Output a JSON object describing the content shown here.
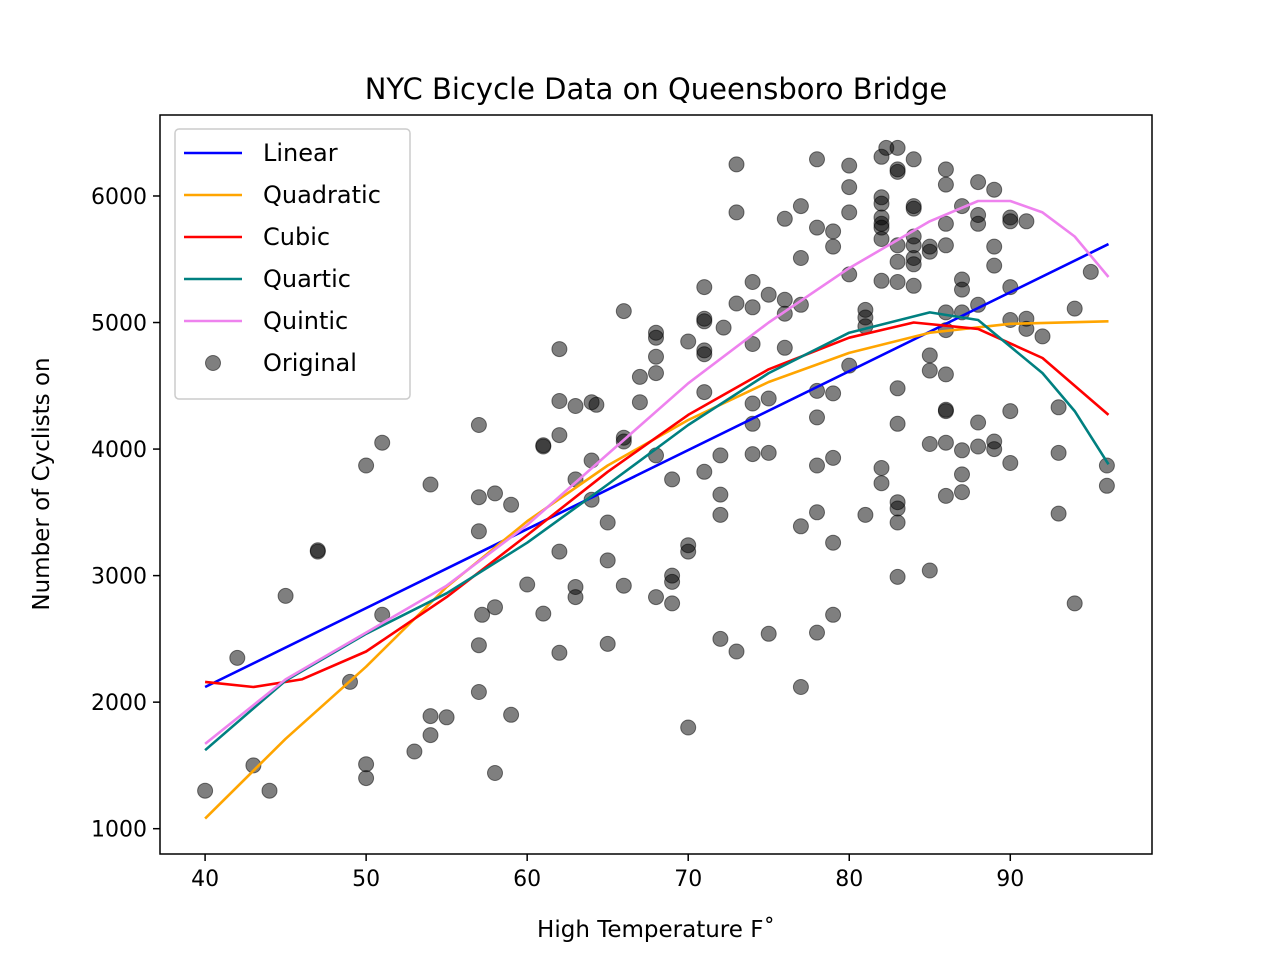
{
  "chart_data": {
    "type": "scatter",
    "title": "NYC Bicycle Data on Queensboro Bridge",
    "xlabel": "High Temperature F˚",
    "ylabel": "Number of Cyclists on",
    "xlim": [
      37.2,
      98.8
    ],
    "ylim": [
      800,
      6640
    ],
    "xticks": [
      40,
      50,
      60,
      70,
      80,
      90
    ],
    "yticks": [
      1000,
      2000,
      3000,
      4000,
      5000,
      6000
    ],
    "grid": false,
    "legend_position": "upper-left",
    "series": [
      {
        "name": "Linear",
        "kind": "line",
        "color": "#0000ff",
        "x": [
          40,
          96.1
        ],
        "y": [
          2120,
          5620
        ]
      },
      {
        "name": "Quadratic",
        "kind": "line",
        "color": "#ffa500",
        "x": [
          40,
          45,
          50,
          55,
          60,
          65,
          70,
          75,
          80,
          85,
          90,
          96.1
        ],
        "y": [
          1080,
          1710,
          2280,
          2910,
          3430,
          3870,
          4230,
          4530,
          4760,
          4920,
          4990,
          5010
        ]
      },
      {
        "name": "Cubic",
        "kind": "line",
        "color": "#ff0000",
        "x": [
          40,
          43,
          46,
          50,
          55,
          60,
          65,
          70,
          75,
          80,
          84,
          88,
          92,
          96.1
        ],
        "y": [
          2160,
          2120,
          2180,
          2400,
          2830,
          3320,
          3820,
          4270,
          4630,
          4880,
          5000,
          4950,
          4720,
          4270
        ]
      },
      {
        "name": "Quartic",
        "kind": "line",
        "color": "#008080",
        "x": [
          40,
          45,
          50,
          55,
          60,
          65,
          70,
          75,
          80,
          85,
          88,
          92,
          94,
          96.1
        ],
        "y": [
          1620,
          2170,
          2540,
          2860,
          3260,
          3720,
          4190,
          4600,
          4920,
          5080,
          5020,
          4600,
          4300,
          3880
        ]
      },
      {
        "name": "Quintic",
        "kind": "line",
        "color": "#ee82ee",
        "x": [
          40,
          45,
          50,
          55,
          60,
          65,
          70,
          75,
          80,
          85,
          88,
          90,
          92,
          94,
          96.1
        ],
        "y": [
          1670,
          2180,
          2550,
          2920,
          3400,
          3960,
          4520,
          5000,
          5430,
          5800,
          5960,
          5960,
          5870,
          5680,
          5360
        ]
      },
      {
        "name": "Original",
        "kind": "scatter",
        "color": "#000000",
        "points": [
          [
            40,
            1300
          ],
          [
            42,
            2350
          ],
          [
            43,
            1500
          ],
          [
            44,
            1300
          ],
          [
            45,
            2840
          ],
          [
            47,
            3190
          ],
          [
            47,
            3200
          ],
          [
            49,
            2160
          ],
          [
            50,
            3870
          ],
          [
            50,
            1510
          ],
          [
            50,
            1400
          ],
          [
            51,
            4050
          ],
          [
            51,
            2690
          ],
          [
            53,
            1610
          ],
          [
            54,
            3720
          ],
          [
            54,
            1740
          ],
          [
            54,
            1890
          ],
          [
            55,
            1880
          ],
          [
            57,
            4190
          ],
          [
            57,
            3620
          ],
          [
            57,
            3350
          ],
          [
            57,
            2450
          ],
          [
            57,
            2080
          ],
          [
            57.2,
            2690
          ],
          [
            58,
            3650
          ],
          [
            58,
            2750
          ],
          [
            58,
            1440
          ],
          [
            59,
            3560
          ],
          [
            59,
            1900
          ],
          [
            60,
            2930
          ],
          [
            61,
            4020
          ],
          [
            61,
            4030
          ],
          [
            61,
            2700
          ],
          [
            62,
            4790
          ],
          [
            62,
            4380
          ],
          [
            62,
            4110
          ],
          [
            62,
            3190
          ],
          [
            62,
            2390
          ],
          [
            63,
            4340
          ],
          [
            63,
            3760
          ],
          [
            63,
            2910
          ],
          [
            63,
            2830
          ],
          [
            64,
            4370
          ],
          [
            64,
            3910
          ],
          [
            64,
            3600
          ],
          [
            64.3,
            4350
          ],
          [
            65,
            3420
          ],
          [
            65,
            3120
          ],
          [
            65,
            2460
          ],
          [
            66,
            5090
          ],
          [
            66,
            4090
          ],
          [
            66,
            4060
          ],
          [
            66,
            2920
          ],
          [
            67,
            4570
          ],
          [
            67,
            4370
          ],
          [
            68,
            4920
          ],
          [
            68,
            4880
          ],
          [
            68,
            4730
          ],
          [
            68,
            4600
          ],
          [
            68,
            3950
          ],
          [
            68,
            2830
          ],
          [
            69,
            3760
          ],
          [
            69,
            3000
          ],
          [
            69,
            2950
          ],
          [
            69,
            2780
          ],
          [
            70,
            4850
          ],
          [
            70,
            3240
          ],
          [
            70,
            3190
          ],
          [
            70,
            1800
          ],
          [
            71,
            5280
          ],
          [
            71,
            5030
          ],
          [
            71,
            5010
          ],
          [
            71,
            4780
          ],
          [
            71,
            4750
          ],
          [
            71,
            4450
          ],
          [
            71,
            3820
          ],
          [
            72,
            3950
          ],
          [
            72,
            3640
          ],
          [
            72,
            3480
          ],
          [
            72,
            2500
          ],
          [
            72.2,
            4960
          ],
          [
            73,
            6250
          ],
          [
            73,
            5870
          ],
          [
            73,
            5150
          ],
          [
            73,
            2400
          ],
          [
            74,
            5320
          ],
          [
            74,
            5120
          ],
          [
            74,
            4830
          ],
          [
            74,
            4360
          ],
          [
            74,
            4200
          ],
          [
            74,
            3960
          ],
          [
            75,
            5220
          ],
          [
            75,
            4400
          ],
          [
            75,
            3970
          ],
          [
            75,
            2540
          ],
          [
            76,
            5820
          ],
          [
            76,
            5180
          ],
          [
            76,
            5070
          ],
          [
            76,
            4800
          ],
          [
            77,
            5920
          ],
          [
            77,
            5510
          ],
          [
            77,
            5140
          ],
          [
            77,
            3390
          ],
          [
            77,
            2120
          ],
          [
            78,
            6290
          ],
          [
            78,
            5750
          ],
          [
            78,
            4460
          ],
          [
            78,
            4250
          ],
          [
            78,
            3870
          ],
          [
            78,
            3500
          ],
          [
            78,
            2550
          ],
          [
            79,
            5720
          ],
          [
            79,
            5600
          ],
          [
            79,
            4440
          ],
          [
            79,
            3930
          ],
          [
            79,
            3260
          ],
          [
            79,
            2690
          ],
          [
            80,
            6240
          ],
          [
            80,
            6070
          ],
          [
            80,
            5870
          ],
          [
            80,
            5380
          ],
          [
            80,
            4660
          ],
          [
            81,
            5100
          ],
          [
            81,
            5040
          ],
          [
            81,
            4970
          ],
          [
            81,
            3480
          ],
          [
            82,
            6310
          ],
          [
            82,
            5990
          ],
          [
            82,
            5940
          ],
          [
            82,
            5830
          ],
          [
            82,
            5780
          ],
          [
            82,
            5750
          ],
          [
            82,
            5660
          ],
          [
            82,
            5330
          ],
          [
            82,
            3850
          ],
          [
            82,
            3730
          ],
          [
            82.3,
            6380
          ],
          [
            83,
            6380
          ],
          [
            83,
            6210
          ],
          [
            83,
            6190
          ],
          [
            83,
            5610
          ],
          [
            83,
            5480
          ],
          [
            83,
            5320
          ],
          [
            83,
            4480
          ],
          [
            83,
            4200
          ],
          [
            83,
            3580
          ],
          [
            83,
            3530
          ],
          [
            83,
            3420
          ],
          [
            83,
            2990
          ],
          [
            84,
            6290
          ],
          [
            84,
            5920
          ],
          [
            84,
            5900
          ],
          [
            84,
            5680
          ],
          [
            84,
            5610
          ],
          [
            84,
            5510
          ],
          [
            84,
            5460
          ],
          [
            84,
            5290
          ],
          [
            85,
            5600
          ],
          [
            85,
            5560
          ],
          [
            85,
            4740
          ],
          [
            85,
            4620
          ],
          [
            85,
            4040
          ],
          [
            85,
            3040
          ],
          [
            86,
            6210
          ],
          [
            86,
            6090
          ],
          [
            86,
            5780
          ],
          [
            86,
            5610
          ],
          [
            86,
            5080
          ],
          [
            86,
            4940
          ],
          [
            86,
            4590
          ],
          [
            86,
            4300
          ],
          [
            86,
            4310
          ],
          [
            86,
            4050
          ],
          [
            86,
            3630
          ],
          [
            87,
            5920
          ],
          [
            87,
            5340
          ],
          [
            87,
            5260
          ],
          [
            87,
            5080
          ],
          [
            87,
            3990
          ],
          [
            87,
            3800
          ],
          [
            87,
            3660
          ],
          [
            88,
            6110
          ],
          [
            88,
            5850
          ],
          [
            88,
            5780
          ],
          [
            88,
            5140
          ],
          [
            88,
            4210
          ],
          [
            88,
            4020
          ],
          [
            89,
            6050
          ],
          [
            89,
            5600
          ],
          [
            89,
            5450
          ],
          [
            89,
            4060
          ],
          [
            89,
            4000
          ],
          [
            90,
            5830
          ],
          [
            90,
            5800
          ],
          [
            90,
            5280
          ],
          [
            90,
            5020
          ],
          [
            90,
            4300
          ],
          [
            90,
            3890
          ],
          [
            91,
            5800
          ],
          [
            91,
            5030
          ],
          [
            91,
            4950
          ],
          [
            92,
            4890
          ],
          [
            93,
            4330
          ],
          [
            93,
            3970
          ],
          [
            93,
            3490
          ],
          [
            94,
            5110
          ],
          [
            94,
            2780
          ],
          [
            95,
            5400
          ],
          [
            96,
            3870
          ],
          [
            96,
            3710
          ]
        ]
      }
    ]
  }
}
